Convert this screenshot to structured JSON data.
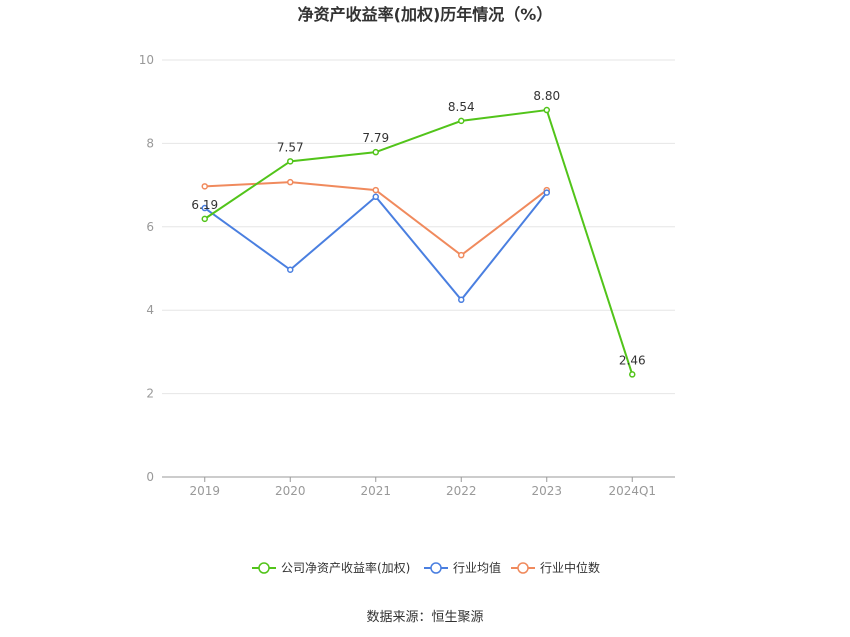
{
  "chart_data": {
    "type": "line",
    "title": "净资产收益率(加权)历年情况（%）",
    "categories": [
      "2019",
      "2020",
      "2021",
      "2022",
      "2023",
      "2024Q1"
    ],
    "ylim": [
      0,
      10
    ],
    "yticks": [
      0,
      2,
      4,
      6,
      8,
      10
    ],
    "grid": true,
    "legend_position": "bottom",
    "series": [
      {
        "name": "公司净资产收益率(加权)",
        "color": "#52c41a",
        "values": [
          6.19,
          7.57,
          7.79,
          8.54,
          8.8,
          2.46
        ],
        "labels": [
          "6.19",
          "7.57",
          "7.79",
          "8.54",
          "8.80",
          "2.46"
        ]
      },
      {
        "name": "行业均值",
        "color": "#4a7fe0",
        "values": [
          6.45,
          4.97,
          6.72,
          4.25,
          6.82,
          null
        ]
      },
      {
        "name": "行业中位数",
        "color": "#f08a5d",
        "values": [
          6.97,
          7.07,
          6.88,
          5.32,
          6.88,
          null
        ]
      }
    ]
  },
  "source": "数据来源：恒生聚源"
}
